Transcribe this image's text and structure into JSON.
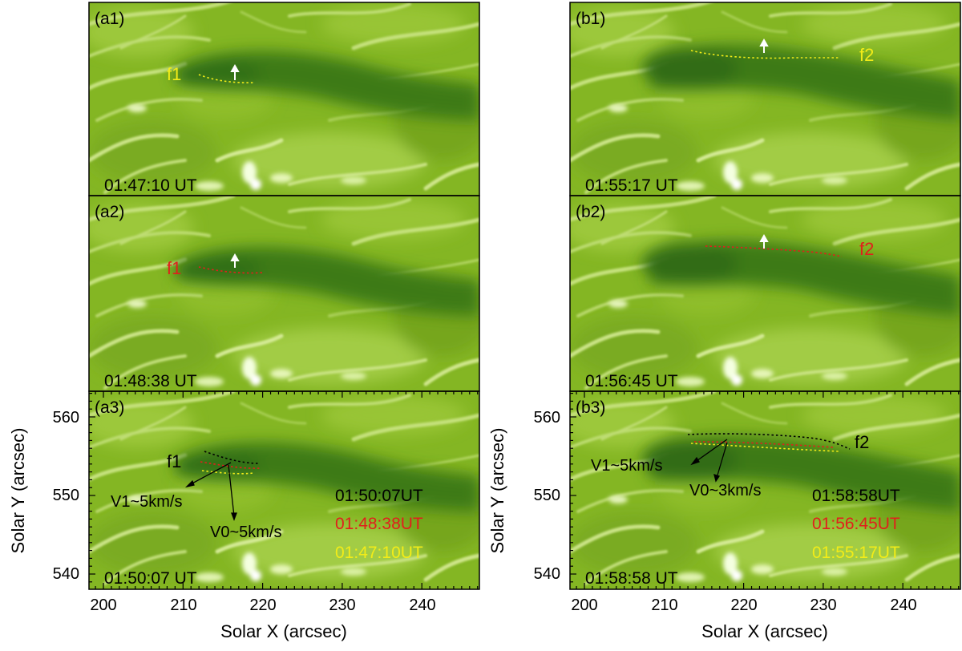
{
  "axes": {
    "xlabel": "Solar X (arcsec)",
    "ylabel": "Solar Y (arcsec)",
    "x_ticks": [
      "200",
      "210",
      "220",
      "230",
      "240"
    ],
    "y_ticks": [
      "560",
      "550",
      "540"
    ]
  },
  "panels": [
    {
      "id": "a1",
      "label": "(a1)",
      "time": "01:47:10 UT"
    },
    {
      "id": "a2",
      "label": "(a2)",
      "time": "01:48:38 UT"
    },
    {
      "id": "a3",
      "label": "(a3)",
      "time": "01:50:07 UT"
    },
    {
      "id": "b1",
      "label": "(b1)",
      "time": "01:55:17 UT"
    },
    {
      "id": "b2",
      "label": "(b2)",
      "time": "01:56:45 UT"
    },
    {
      "id": "b3",
      "label": "(b3)",
      "time": "01:58:58 UT"
    }
  ],
  "annotations": {
    "a1": {
      "filament": "f1"
    },
    "a2": {
      "filament": "f1"
    },
    "a3": {
      "filament": "f1",
      "v1": "V1~5km/s",
      "v0": "V0~5km/s",
      "legend": [
        "01:50:07UT",
        "01:48:38UT",
        "01:47:10UT"
      ]
    },
    "b1": {
      "filament": "f2"
    },
    "b2": {
      "filament": "f2"
    },
    "b3": {
      "filament": "f2",
      "v1": "V1~5km/s",
      "v0": "V0~3km/s",
      "legend": [
        "01:58:58UT",
        "01:56:45UT",
        "01:55:17UT"
      ]
    }
  },
  "colors": {
    "image_base": "#84b623",
    "filament_dark": "#2f6a12",
    "bright": "#f4ffe0",
    "black_trace": "#000000",
    "red_trace": "#e0201c",
    "yellow_trace": "#f2ec18"
  }
}
